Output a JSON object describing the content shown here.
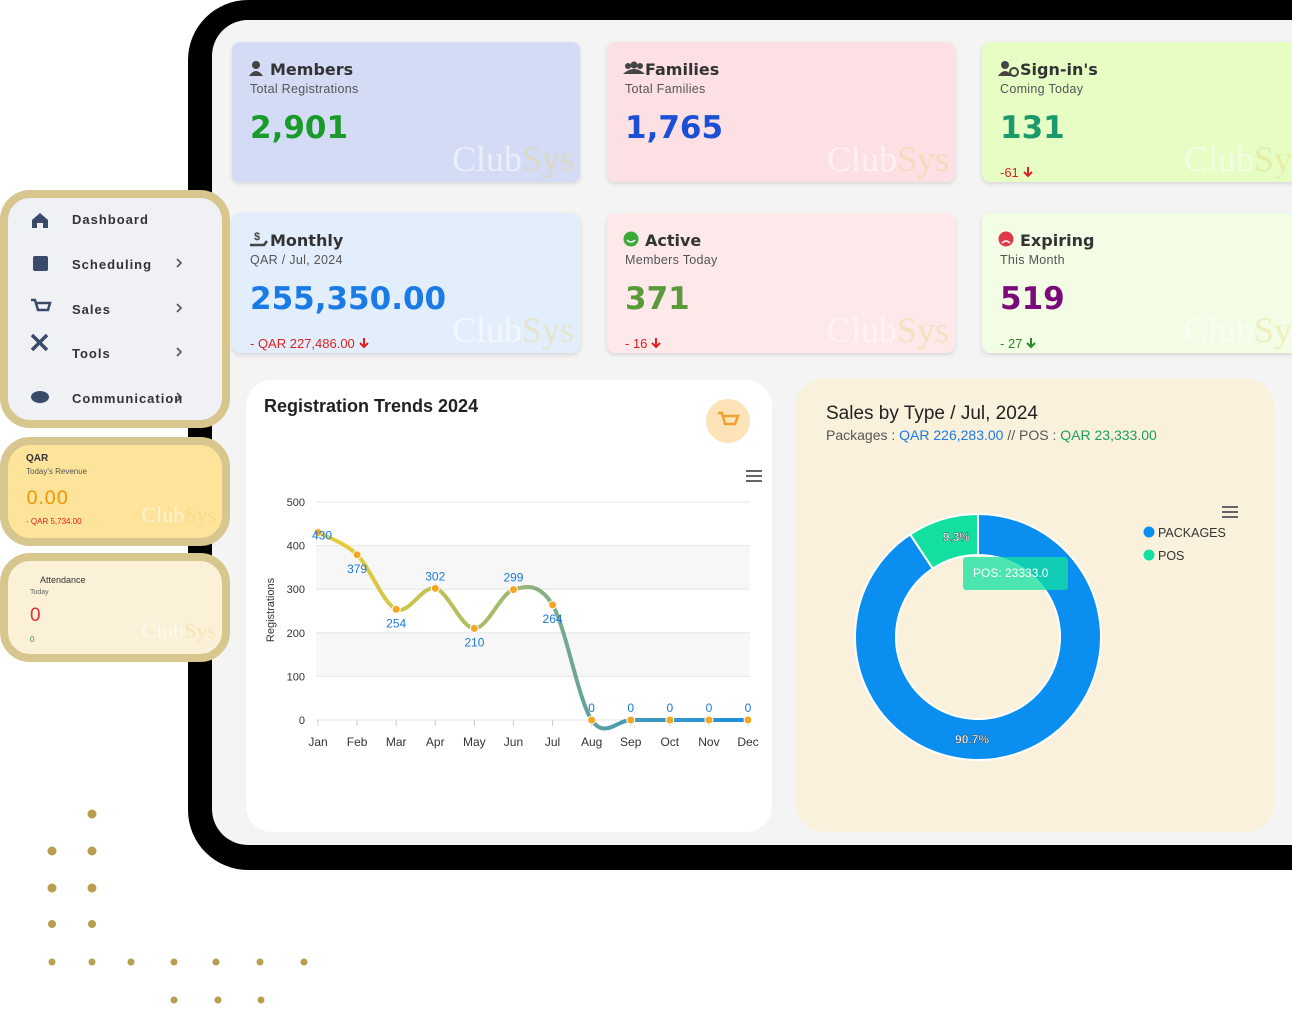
{
  "sidebar": {
    "items": [
      "Dashboard",
      "Scheduling",
      "Sales",
      "Tools",
      "Communication"
    ]
  },
  "cards": [
    {
      "title": "Members",
      "subtitle": "Total Registrations",
      "value": "2,901"
    },
    {
      "title": "Families",
      "subtitle": "Total Families",
      "value": "1,765"
    },
    {
      "title": "Sign-in's",
      "subtitle": "Coming Today",
      "value": "131",
      "delta": "-61"
    },
    {
      "title": "Monthly",
      "subtitle": "QAR / Jul, 2024",
      "value": "255,350.00",
      "delta": "- QAR 227,486.00"
    },
    {
      "title": "Active",
      "subtitle": "Members Today",
      "value": "371",
      "delta": "- 16"
    },
    {
      "title": "Expiring",
      "subtitle": "This Month",
      "value": "519",
      "delta": "- 27"
    }
  ],
  "widgets": [
    {
      "title": "QAR",
      "subtitle": "Today's Revenue",
      "value": "0.00",
      "delta": "- QAR 5,734.00"
    },
    {
      "title": "Attendance",
      "subtitle": "Today",
      "value": "0",
      "delta": "0"
    }
  ],
  "watermark": {
    "club": "Club",
    "sys": "Sys"
  },
  "chart_data": [
    {
      "type": "line",
      "title": "Registration Trends 2024",
      "y_label": "Registrations",
      "categories": [
        "Jan",
        "Feb",
        "Mar",
        "Apr",
        "May",
        "Jun",
        "Jul",
        "Aug",
        "Sep",
        "Oct",
        "Nov",
        "Dec"
      ],
      "values": [
        430,
        379,
        254,
        302,
        210,
        299,
        264,
        0,
        0,
        0,
        0,
        0
      ],
      "point_color": "#f5a623",
      "ylim": [
        0,
        500
      ],
      "yticks": [
        0,
        100,
        200,
        300,
        400,
        500
      ],
      "grid": true
    },
    {
      "type": "pie",
      "title": "Sales by Type / Jul, 2024",
      "subtitle": {
        "packages_label": "Packages :",
        "packages_value": "QAR 226,283.00",
        "separator": "//",
        "pos_label": "POS :",
        "pos_value": "QAR 23,333.00"
      },
      "categories": [
        "PACKAGES",
        "POS"
      ],
      "values": [
        90.7,
        9.3
      ],
      "value_labels": [
        "90.7%",
        "9.3%"
      ],
      "colors": [
        "#0a8ff0",
        "#13e0a0"
      ],
      "tooltip": "POS:  23333.0",
      "legend": "top-right"
    }
  ]
}
